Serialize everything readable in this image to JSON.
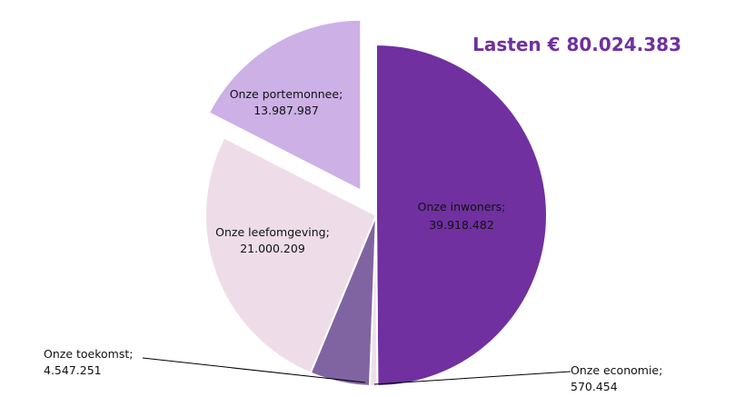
{
  "chart_data": {
    "type": "pie",
    "title": "Lasten € 80.024.383",
    "title_color": "#7030A0",
    "slices": [
      {
        "label": "Onze inwoners",
        "value": 39918482,
        "value_text": "39.918.482",
        "color": "#7030A0",
        "exploded": false
      },
      {
        "label": "Onze economie",
        "value": 570454,
        "value_text": "570.454",
        "color": "#EDE0EA",
        "exploded": false
      },
      {
        "label": "Onze toekomst",
        "value": 4547251,
        "value_text": "4.547.251",
        "color": "#8064A2",
        "exploded": false
      },
      {
        "label": "Onze leefomgeving",
        "value": 21000209,
        "value_text": "21.000.209",
        "color": "#EEDDE8",
        "exploded": false
      },
      {
        "label": "Onze portemonnee",
        "value": 13987987,
        "value_text": "13.987.987",
        "color": "#CCB0E6",
        "exploded": true
      }
    ]
  }
}
